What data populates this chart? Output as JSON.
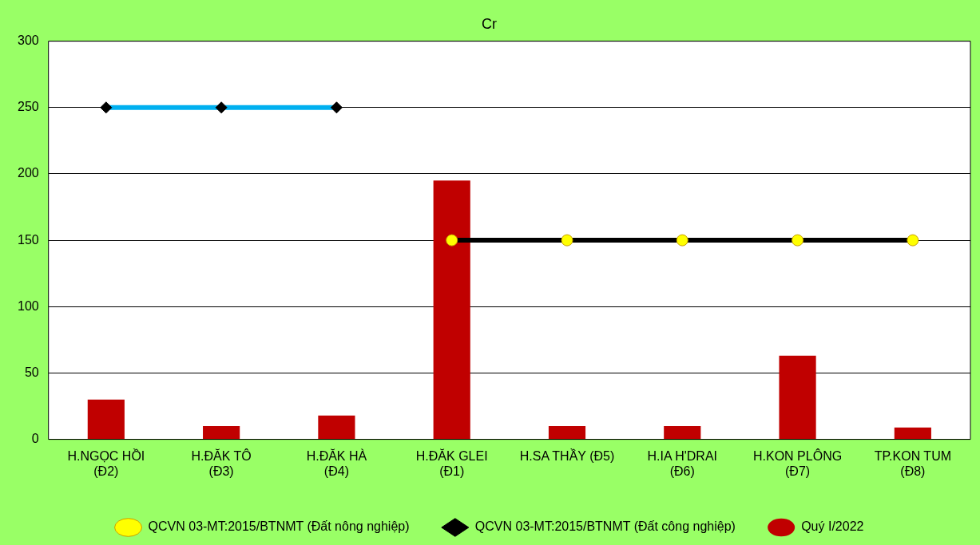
{
  "chart_data": {
    "type": "bar",
    "title": "Cr",
    "categories": [
      "H.NGỌC HỒI\n(Đ2)",
      "H.ĐĂK TÔ\n(Đ3)",
      "H.ĐĂK HÀ\n(Đ4)",
      "H.ĐĂK GLEI\n(Đ1)",
      "H.SA THẦY (Đ5)",
      "H.IA H'DRAI\n(Đ6)",
      "H.KON PLÔNG\n(Đ7)",
      "TP.KON TUM\n(Đ8)"
    ],
    "series": [
      {
        "name": "Quý I/2022",
        "color": "#c00000",
        "values": [
          30,
          10,
          18,
          195,
          10,
          10,
          63,
          9
        ]
      },
      {
        "name": "QCVN 03-MT:2015/BTNMT (Đất nông nghiệp)",
        "type": "line",
        "color": "#000000",
        "marker": "circle",
        "values": [
          null,
          null,
          null,
          150,
          150,
          150,
          150,
          150
        ]
      },
      {
        "name": "QCVN 03-MT:2015/BTNMT (Đất công nghiệp)",
        "type": "line",
        "color": "#00b0f0",
        "marker": "diamond",
        "values": [
          250,
          250,
          250,
          null,
          null,
          null,
          null,
          null
        ]
      }
    ],
    "ylim": [
      0,
      300
    ],
    "yticks": [
      0,
      50,
      100,
      150,
      200,
      250,
      300
    ],
    "grid": "y",
    "legend": "bottom"
  }
}
